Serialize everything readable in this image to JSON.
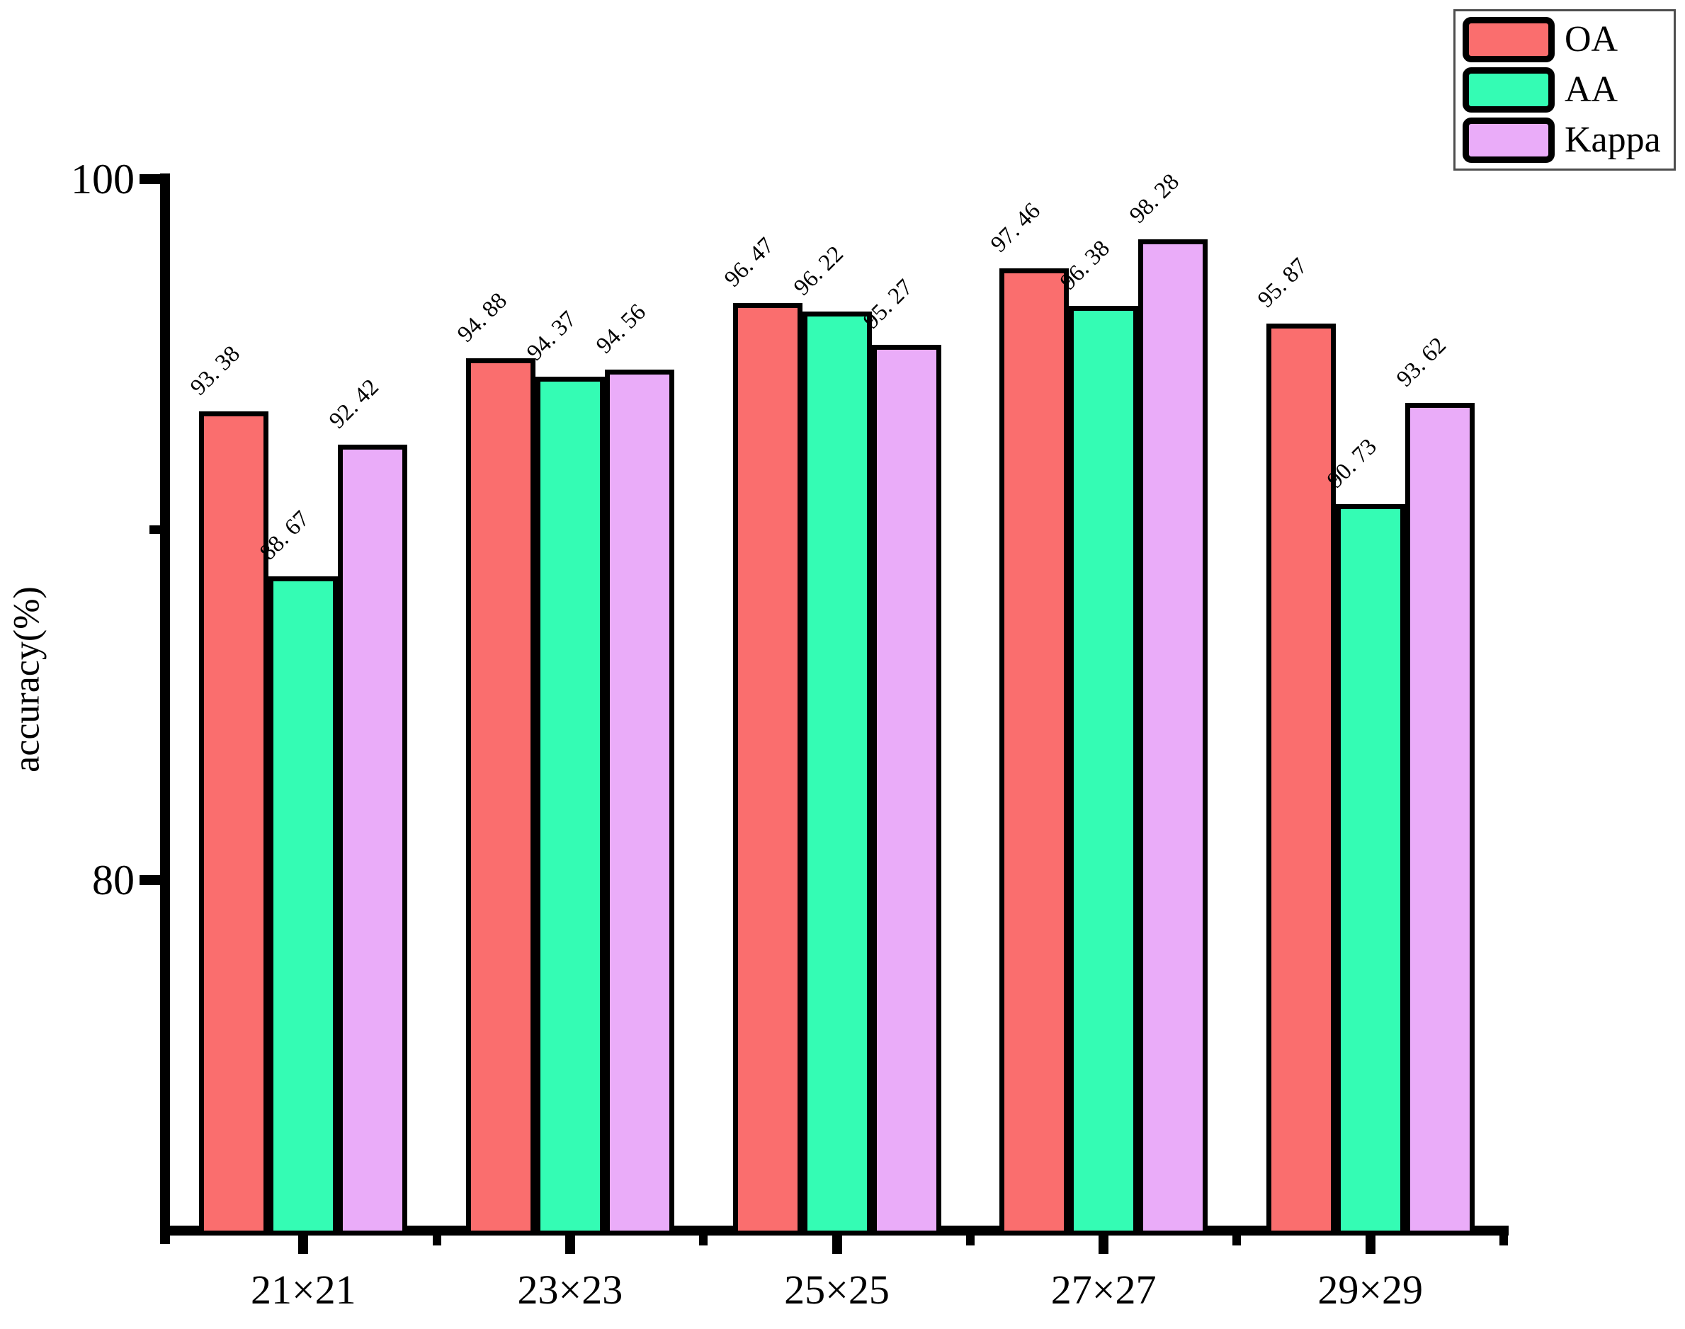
{
  "chart_data": {
    "type": "bar",
    "title": "",
    "xlabel": "",
    "ylabel": "accuracy(%)",
    "categories": [
      "21×21",
      "23×23",
      "25×25",
      "27×27",
      "29×29"
    ],
    "series": [
      {
        "name": "OA",
        "color": "#fa6e6e",
        "values": [
          93.38,
          94.88,
          96.47,
          97.46,
          95.87
        ],
        "display_labels": [
          "93. 38",
          "94. 88",
          "96. 47",
          "97. 46",
          "95. 87"
        ]
      },
      {
        "name": "AA",
        "color": "#34fcb4",
        "values": [
          88.67,
          94.37,
          96.22,
          96.38,
          90.73
        ],
        "display_labels": [
          "88. 67",
          "94. 37",
          "96. 22",
          "96. 38",
          "90. 73"
        ]
      },
      {
        "name": "Kappa",
        "color": "#eaacf9",
        "values": [
          92.42,
          94.56,
          95.27,
          98.28,
          93.62
        ],
        "display_labels": [
          "92. 42",
          "94. 56",
          "95. 27",
          "98. 28",
          "93. 62"
        ]
      }
    ],
    "ylim": [
      70,
      100
    ],
    "y_major_ticks": [
      100,
      80
    ],
    "y_minor_ticks": [
      90
    ],
    "grid": false,
    "legend_position": "top-right",
    "bar_edge_color": "#000000",
    "label_rotation_deg": -45
  }
}
